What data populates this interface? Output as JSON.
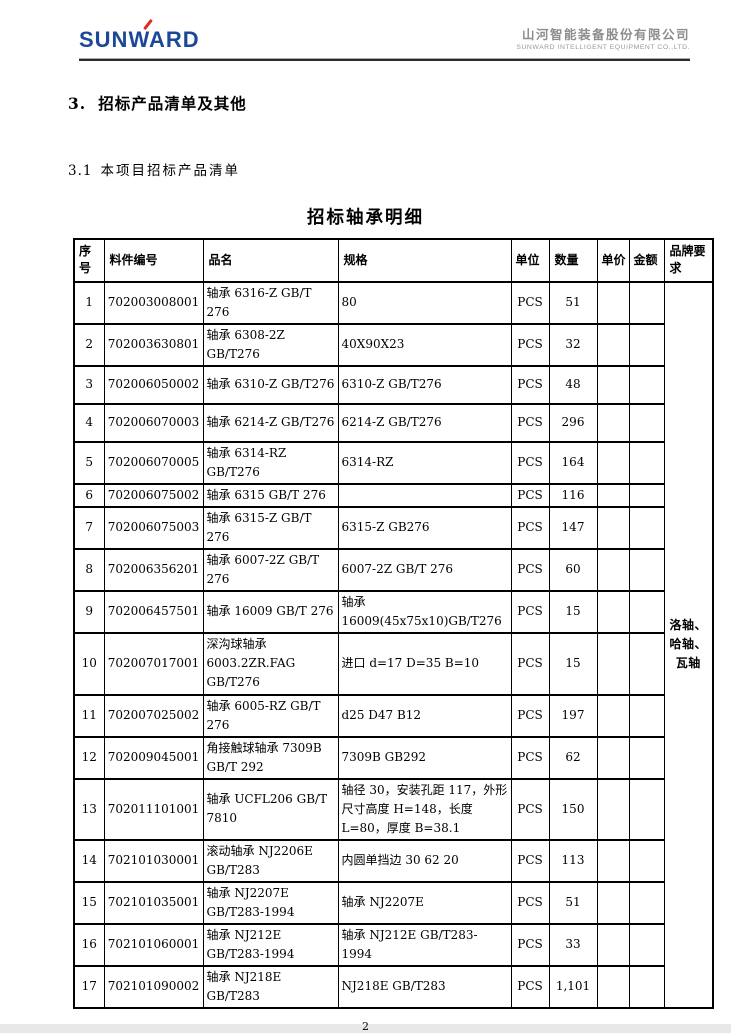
{
  "header": {
    "logo_text": "SUNWARD",
    "company_cn": "山河智能装备股份有限公司",
    "company_en": "SUNWARD INTELLIGENT EQUIPMENT CO.,LTD.",
    "logo_color": "#1c4899",
    "logo_accent_color": "#e02b20"
  },
  "headings": {
    "section_num": "3.",
    "section_text": "招标产品清单及其他",
    "subsection_num": "3.1",
    "subsection_text": "本项目招标产品清单",
    "table_title": "招标轴承明细"
  },
  "table": {
    "columns": [
      {
        "key": "seq",
        "label": "序号"
      },
      {
        "key": "code",
        "label": "料件编号"
      },
      {
        "key": "name",
        "label": "品名"
      },
      {
        "key": "spec",
        "label": "规格"
      },
      {
        "key": "unit",
        "label": "单位"
      },
      {
        "key": "qty",
        "label": "数量"
      },
      {
        "key": "price",
        "label": "单价"
      },
      {
        "key": "amount",
        "label": "金额"
      },
      {
        "key": "brand",
        "label": "品牌要求"
      }
    ],
    "brand_requirement": "洛轴、哈轴、瓦轴",
    "rows": [
      {
        "seq": "1",
        "code": "702003008001",
        "name": "轴承 6316-Z GB/T 276",
        "spec": "80",
        "unit": "PCS",
        "qty": "51",
        "price": "",
        "amount": ""
      },
      {
        "seq": "2",
        "code": "702003630801",
        "name": "轴承 6308-2Z GB/T276",
        "spec": "40X90X23",
        "unit": "PCS",
        "qty": "32",
        "price": "",
        "amount": ""
      },
      {
        "seq": "3",
        "code": "702006050002",
        "name": "轴承 6310-Z GB/T276",
        "spec": "6310-Z GB/T276",
        "unit": "PCS",
        "qty": "48",
        "price": "",
        "amount": ""
      },
      {
        "seq": "4",
        "code": "702006070003",
        "name": "轴承 6214-Z GB/T276",
        "spec": "6214-Z GB/T276",
        "unit": "PCS",
        "qty": "296",
        "price": "",
        "amount": ""
      },
      {
        "seq": "5",
        "code": "702006070005",
        "name": "轴承 6314-RZ GB/T276",
        "spec": "6314-RZ",
        "unit": "PCS",
        "qty": "164",
        "price": "",
        "amount": ""
      },
      {
        "seq": "6",
        "code": "702006075002",
        "name": "轴承 6315 GB/T 276",
        "spec": "",
        "unit": "PCS",
        "qty": "116",
        "price": "",
        "amount": ""
      },
      {
        "seq": "7",
        "code": "702006075003",
        "name": "轴承 6315-Z GB/T 276",
        "spec": "6315-Z GB276",
        "unit": "PCS",
        "qty": "147",
        "price": "",
        "amount": ""
      },
      {
        "seq": "8",
        "code": "702006356201",
        "name": "轴承 6007-2Z GB/T 276",
        "spec": "6007-2Z GB/T 276",
        "unit": "PCS",
        "qty": "60",
        "price": "",
        "amount": ""
      },
      {
        "seq": "9",
        "code": "702006457501",
        "name": "轴承 16009 GB/T 276",
        "spec": "轴承 16009(45x75x10)GB/T276",
        "unit": "PCS",
        "qty": "15",
        "price": "",
        "amount": ""
      },
      {
        "seq": "10",
        "code": "702007017001",
        "name": "深沟球轴承 6003.2ZR.FAG GB/T276",
        "spec": "进口  d=17 D=35 B=10",
        "unit": "PCS",
        "qty": "15",
        "price": "",
        "amount": ""
      },
      {
        "seq": "11",
        "code": "702007025002",
        "name": "轴承 6005-RZ GB/T 276",
        "spec": "d25 D47 B12",
        "unit": "PCS",
        "qty": "197",
        "price": "",
        "amount": ""
      },
      {
        "seq": "12",
        "code": "702009045001",
        "name": "角接触球轴承 7309B GB/T 292",
        "spec": "7309B GB292",
        "unit": "PCS",
        "qty": "62",
        "price": "",
        "amount": ""
      },
      {
        "seq": "13",
        "code": "702011101001",
        "name": "轴承 UCFL206 GB/T 7810",
        "spec": "轴径 30，安装孔距 117，外形尺寸高度 H=148，长度 L=80，厚度 B=38.1",
        "unit": "PCS",
        "qty": "150",
        "price": "",
        "amount": ""
      },
      {
        "seq": "14",
        "code": "702101030001",
        "name": "滚动轴承 NJ2206E GB/T283",
        "spec": "内圆单挡边 30 62 20",
        "unit": "PCS",
        "qty": "113",
        "price": "",
        "amount": ""
      },
      {
        "seq": "15",
        "code": "702101035001",
        "name": "轴承 NJ2207E GB/T283-1994",
        "spec": "轴承 NJ2207E",
        "unit": "PCS",
        "qty": "51",
        "price": "",
        "amount": ""
      },
      {
        "seq": "16",
        "code": "702101060001",
        "name": "轴承 NJ212E GB/T283-1994",
        "spec": "轴承 NJ212E GB/T283-1994",
        "unit": "PCS",
        "qty": "33",
        "price": "",
        "amount": ""
      },
      {
        "seq": "17",
        "code": "702101090002",
        "name": "轴承 NJ218E GB/T283",
        "spec": "NJ218E GB/T283",
        "unit": "PCS",
        "qty": "1,101",
        "price": "",
        "amount": ""
      }
    ]
  },
  "footer": {
    "page_number": "2"
  }
}
